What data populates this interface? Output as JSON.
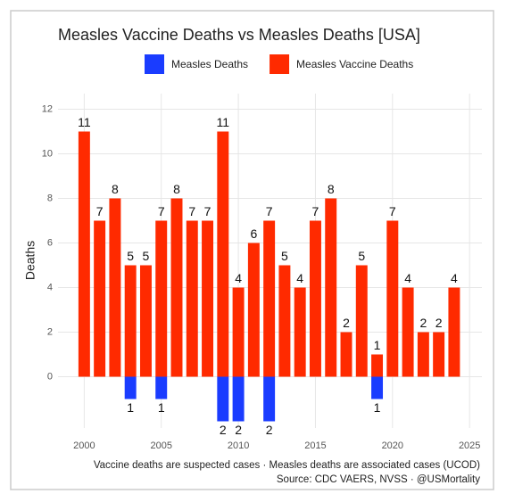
{
  "chart_data": {
    "type": "bar",
    "title": "Measles Vaccine Deaths vs Measles Deaths [USA]",
    "y_label": "Deaths",
    "caption": [
      "Vaccine deaths are suspected cases · Measles deaths are associated cases (UCOD)",
      "Source: CDC VAERS, NVSS · @USMortality"
    ],
    "x": [
      2000,
      2001,
      2002,
      2003,
      2004,
      2005,
      2006,
      2007,
      2008,
      2009,
      2010,
      2011,
      2012,
      2013,
      2014,
      2015,
      2016,
      2017,
      2018,
      2019,
      2020,
      2021,
      2022,
      2023,
      2024
    ],
    "series": [
      {
        "name": "Measles Deaths",
        "color": "#1a3cff",
        "values": [
          null,
          null,
          null,
          -1,
          null,
          -1,
          null,
          null,
          null,
          -2,
          -2,
          null,
          -2,
          null,
          null,
          null,
          null,
          null,
          null,
          -1,
          null,
          null,
          null,
          null,
          null
        ],
        "value_labels": [
          null,
          null,
          null,
          "1",
          null,
          "1",
          null,
          null,
          null,
          "2",
          "2",
          null,
          "2",
          null,
          null,
          null,
          null,
          null,
          null,
          "1",
          null,
          null,
          null,
          null,
          null
        ]
      },
      {
        "name": "Measles Vaccine Deaths",
        "color": "#ff2a00",
        "values": [
          11,
          7,
          8,
          5,
          5,
          7,
          8,
          7,
          7,
          11,
          4,
          6,
          7,
          5,
          4,
          7,
          8,
          2,
          5,
          1,
          7,
          4,
          2,
          2,
          4
        ]
      }
    ],
    "xlim": [
      1998.3,
      2025.8
    ],
    "xticks": [
      2000,
      2005,
      2010,
      2015,
      2020,
      2025
    ],
    "ylim": [
      -2.3,
      12.7
    ],
    "yticks": [
      0,
      2,
      4,
      6,
      8,
      10,
      12
    ],
    "grid": true,
    "legend": "top"
  }
}
